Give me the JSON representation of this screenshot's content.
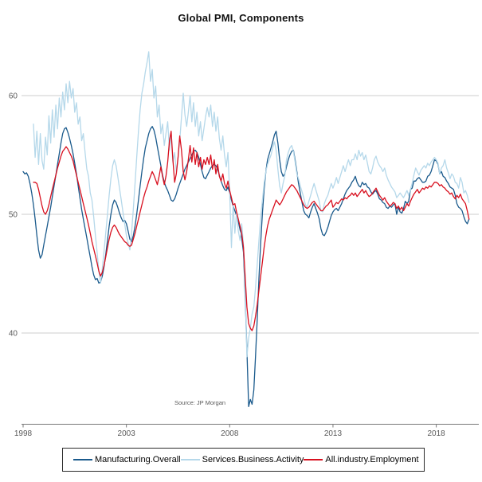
{
  "chart_data": {
    "type": "line",
    "title": "Global PMI, Components",
    "source": "Source: JP Morgan",
    "frequency": "monthly",
    "x_axis": {
      "ticks": [
        1998,
        2003,
        2008,
        2013,
        2018
      ],
      "range": [
        1998,
        2020.1
      ]
    },
    "y_axis": {
      "gridlines": [
        60,
        50,
        40
      ],
      "range": [
        32,
        64.5
      ]
    },
    "legend_position": "bottom",
    "style": {
      "gridline_color": "#cdcdcd",
      "axis_color": "#7a7a7a",
      "tick_label_color": "#595959",
      "background": "#ffffff"
    },
    "series": [
      {
        "name": "Manufacturing.Overall",
        "color": "#1a5a8c",
        "start_year": 1998.0,
        "values": [
          53.6,
          53.4,
          53.5,
          53.2,
          52.6,
          51.8,
          50.8,
          49.6,
          48.2,
          47.0,
          46.3,
          46.6,
          47.4,
          48.2,
          49.0,
          49.8,
          50.6,
          51.5,
          52.4,
          53.3,
          54.2,
          55.1,
          56.0,
          56.8,
          57.2,
          57.3,
          56.9,
          56.4,
          55.8,
          55.1,
          54.3,
          53.4,
          52.4,
          51.4,
          50.4,
          49.6,
          48.8,
          48.0,
          47.2,
          46.4,
          45.6,
          44.9,
          44.5,
          44.6,
          44.2,
          44.3,
          44.8,
          45.6,
          46.6,
          47.8,
          49.0,
          50.0,
          50.8,
          51.2,
          51.0,
          50.6,
          50.1,
          49.7,
          49.4,
          49.5,
          49.2,
          48.6,
          47.9,
          47.7,
          48.2,
          49.0,
          50.0,
          51.2,
          52.4,
          53.6,
          54.7,
          55.6,
          56.2,
          56.8,
          57.2,
          57.4,
          57.1,
          56.5,
          55.7,
          54.9,
          54.1,
          53.3,
          52.7,
          52.3,
          52.0,
          51.6,
          51.2,
          51.1,
          51.3,
          51.7,
          52.2,
          52.6,
          53.0,
          53.4,
          53.8,
          54.1,
          54.4,
          54.7,
          55.0,
          55.3,
          55.4,
          55.2,
          54.8,
          54.2,
          53.6,
          53.1,
          53.0,
          53.3,
          53.6,
          53.9,
          54.1,
          54.2,
          54.1,
          53.8,
          53.3,
          52.8,
          52.4,
          52.1,
          52.0,
          52.3,
          51.8,
          51.2,
          50.7,
          50.3,
          49.9,
          49.4,
          48.7,
          48.0,
          46.8,
          43.2,
          38.6,
          33.8,
          34.4,
          34.0,
          35.2,
          38.0,
          41.2,
          44.6,
          47.6,
          50.1,
          52.1,
          53.6,
          54.6,
          55.1,
          55.6,
          56.1,
          56.7,
          57.0,
          56.0,
          54.6,
          53.6,
          53.2,
          53.4,
          54.0,
          54.6,
          55.0,
          55.3,
          55.4,
          54.6,
          53.6,
          52.6,
          51.8,
          51.0,
          50.3,
          50.0,
          49.9,
          49.7,
          50.2,
          50.6,
          50.9,
          50.5,
          50.1,
          49.6,
          48.8,
          48.3,
          48.2,
          48.5,
          48.9,
          49.4,
          49.9,
          50.2,
          50.4,
          50.5,
          50.3,
          50.6,
          50.9,
          51.3,
          51.7,
          52.0,
          52.2,
          52.4,
          52.7,
          52.9,
          53.2,
          52.7,
          52.4,
          52.3,
          52.7,
          52.5,
          52.6,
          52.3,
          52.2,
          51.9,
          51.7,
          51.9,
          52.0,
          51.7,
          51.3,
          51.2,
          51.0,
          50.9,
          50.6,
          50.5,
          50.7,
          50.6,
          50.8,
          50.9,
          50.0,
          50.6,
          50.2,
          50.1,
          50.5,
          51.1,
          50.9,
          51.1,
          52.1,
          52.2,
          52.8,
          52.8,
          53.0,
          53.1,
          52.9,
          52.7,
          52.7,
          52.8,
          53.2,
          53.3,
          53.6,
          54.1,
          54.6,
          54.5,
          54.2,
          53.4,
          53.6,
          53.2,
          53.1,
          52.8,
          52.6,
          52.3,
          52.2,
          52.1,
          51.6,
          50.9,
          50.6,
          50.5,
          50.3,
          49.8,
          49.4,
          49.2,
          49.6
        ]
      },
      {
        "name": "Services.Business.Activity",
        "color": "#b5d8ea",
        "start_year": 1998.5,
        "values": [
          57.6,
          54.8,
          57.0,
          54.2,
          56.8,
          54.5,
          53.8,
          56.5,
          55.0,
          58.3,
          56.0,
          58.8,
          56.5,
          59.2,
          57.2,
          59.8,
          58.2,
          60.3,
          58.8,
          61.0,
          59.4,
          61.2,
          59.8,
          60.6,
          58.6,
          59.4,
          57.6,
          58.2,
          56.2,
          56.8,
          55.2,
          53.8,
          53.2,
          51.8,
          51.2,
          49.8,
          48.2,
          46.8,
          45.2,
          44.2,
          45.4,
          46.9,
          48.4,
          50.0,
          51.6,
          53.0,
          54.1,
          54.6,
          54.1,
          53.2,
          52.2,
          51.2,
          50.2,
          49.2,
          48.2,
          47.6,
          47.0,
          48.4,
          50.4,
          52.6,
          54.8,
          57.0,
          58.8,
          60.2,
          61.0,
          62.0,
          62.8,
          63.7,
          61.2,
          62.2,
          59.8,
          60.8,
          58.2,
          59.2,
          56.8,
          57.6,
          55.8,
          56.8,
          57.8,
          55.4,
          56.6,
          54.4,
          55.2,
          53.6,
          54.8,
          56.2,
          58.2,
          60.2,
          58.4,
          57.4,
          58.6,
          60.0,
          57.8,
          59.4,
          57.4,
          58.6,
          56.6,
          57.8,
          56.2,
          57.2,
          58.2,
          59.0,
          58.2,
          59.2,
          57.4,
          58.6,
          57.0,
          58.2,
          56.4,
          55.4,
          56.6,
          55.0,
          54.0,
          55.2,
          51.8,
          47.2,
          50.8,
          48.4,
          50.2,
          48.6,
          47.8,
          49.2,
          47.4,
          43.8,
          38.0,
          39.6,
          40.4,
          41.6,
          42.2,
          43.8,
          45.8,
          47.8,
          49.8,
          51.2,
          52.6,
          53.6,
          54.2,
          54.6,
          55.0,
          55.6,
          56.1,
          55.4,
          53.8,
          52.4,
          51.8,
          52.6,
          53.2,
          54.6,
          55.2,
          55.6,
          55.8,
          55.3,
          54.4,
          53.4,
          53.0,
          52.4,
          51.9,
          51.4,
          50.8,
          50.6,
          51.1,
          51.6,
          52.1,
          52.6,
          52.1,
          51.6,
          51.1,
          50.3,
          50.2,
          50.9,
          51.3,
          51.6,
          52.1,
          52.6,
          52.2,
          52.6,
          53.1,
          52.6,
          53.1,
          53.6,
          54.1,
          53.6,
          54.1,
          54.6,
          54.1,
          54.6,
          54.6,
          55.1,
          54.6,
          55.4,
          54.9,
          55.2,
          54.6,
          55.0,
          54.3,
          53.6,
          53.4,
          53.9,
          54.6,
          54.9,
          54.4,
          54.1,
          53.9,
          53.6,
          53.9,
          53.3,
          52.9,
          52.6,
          52.3,
          52.1,
          51.9,
          51.4,
          51.6,
          51.8,
          51.6,
          51.4,
          51.7,
          52.0,
          51.6,
          52.1,
          52.6,
          53.3,
          53.9,
          53.6,
          53.3,
          53.7,
          53.9,
          54.1,
          53.9,
          54.3,
          54.1,
          54.4,
          54.6,
          54.8,
          54.6,
          54.3,
          53.4,
          53.9,
          54.1,
          54.6,
          53.9,
          53.5,
          53.0,
          53.4,
          53.2,
          52.7,
          52.6,
          52.2,
          53.1,
          52.7,
          51.8,
          52.0,
          51.6,
          51.0
        ]
      },
      {
        "name": "All.industry.Employment",
        "color": "#d8101f",
        "start_year": 1998.5,
        "values": [
          52.7,
          52.7,
          52.6,
          52.1,
          51.4,
          50.7,
          50.2,
          50.0,
          50.3,
          50.8,
          51.5,
          52.1,
          52.7,
          53.3,
          53.9,
          54.4,
          54.9,
          55.3,
          55.5,
          55.7,
          55.5,
          55.2,
          54.9,
          54.5,
          53.9,
          53.3,
          52.7,
          52.1,
          51.5,
          50.9,
          50.3,
          49.7,
          49.1,
          48.4,
          47.7,
          47.1,
          46.5,
          45.9,
          45.2,
          44.8,
          45.1,
          45.7,
          46.4,
          47.2,
          47.9,
          48.5,
          48.9,
          49.1,
          48.9,
          48.6,
          48.3,
          48.1,
          47.9,
          47.7,
          47.6,
          47.4,
          47.3,
          47.4,
          47.9,
          48.4,
          49.0,
          49.6,
          50.2,
          50.8,
          51.4,
          51.9,
          52.3,
          52.8,
          53.2,
          53.6,
          53.3,
          52.9,
          52.5,
          53.2,
          54.0,
          53.2,
          52.5,
          53.2,
          54.4,
          56.2,
          57.0,
          54.6,
          52.7,
          53.4,
          54.8,
          56.6,
          55.4,
          53.6,
          52.9,
          53.6,
          54.6,
          55.8,
          54.4,
          55.6,
          54.2,
          55.2,
          54.0,
          54.8,
          53.8,
          54.6,
          54.2,
          54.8,
          54.2,
          55.0,
          53.8,
          54.6,
          53.4,
          54.2,
          53.2,
          52.8,
          53.4,
          52.6,
          52.2,
          52.8,
          52.0,
          51.4,
          50.8,
          50.9,
          50.2,
          49.6,
          49.0,
          48.4,
          47.2,
          44.8,
          42.2,
          40.8,
          40.4,
          40.2,
          40.6,
          41.4,
          42.4,
          43.6,
          44.8,
          46.0,
          47.2,
          48.2,
          49.0,
          49.6,
          50.0,
          50.4,
          50.8,
          51.2,
          51.0,
          50.8,
          51.0,
          51.3,
          51.6,
          51.9,
          52.1,
          52.3,
          52.5,
          52.4,
          52.2,
          52.0,
          51.7,
          51.4,
          51.1,
          50.8,
          50.6,
          50.5,
          50.6,
          50.8,
          51.0,
          51.1,
          50.9,
          50.7,
          50.5,
          50.3,
          50.3,
          50.5,
          50.7,
          50.8,
          51.0,
          51.2,
          50.6,
          50.8,
          51.0,
          50.9,
          51.1,
          51.3,
          51.2,
          51.4,
          51.3,
          51.5,
          51.6,
          51.8,
          51.6,
          51.8,
          51.5,
          51.7,
          51.9,
          52.1,
          51.8,
          52.0,
          51.7,
          51.5,
          51.6,
          51.8,
          52.0,
          52.2,
          51.9,
          51.6,
          51.4,
          51.2,
          51.4,
          51.1,
          50.9,
          50.7,
          50.8,
          51.0,
          50.9,
          50.5,
          50.7,
          50.4,
          50.6,
          50.3,
          50.6,
          50.9,
          50.7,
          51.1,
          51.4,
          51.7,
          51.9,
          52.1,
          51.8,
          52.0,
          52.2,
          52.1,
          52.3,
          52.2,
          52.4,
          52.3,
          52.5,
          52.7,
          52.7,
          52.6,
          52.4,
          52.5,
          52.3,
          52.2,
          52.0,
          51.9,
          51.7,
          51.8,
          51.5,
          51.3,
          51.6,
          51.4,
          51.7,
          51.3,
          51.1,
          50.9,
          50.3,
          49.6
        ]
      }
    ]
  }
}
